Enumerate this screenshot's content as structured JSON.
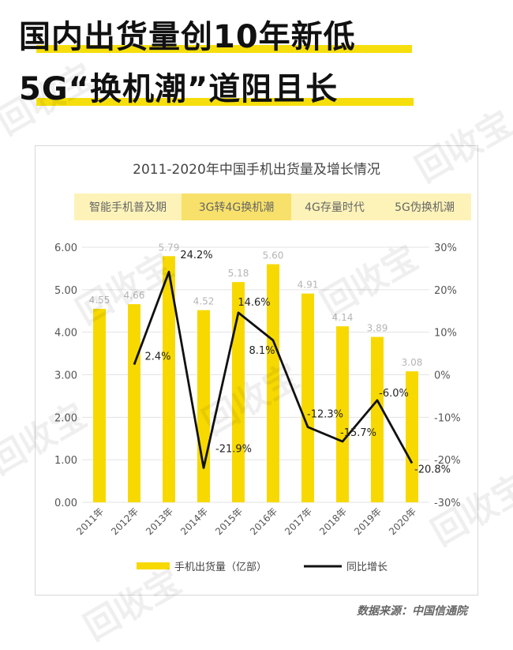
{
  "headline": {
    "line1": "国内出货量创10年新低",
    "line2": "5G“换机潮”道阻且长"
  },
  "watermark": "回收宝",
  "source": "数据来源：中国信通院",
  "colors": {
    "bar": "#f7d900",
    "line": "#111111",
    "highlight": "#f5de0c",
    "phase_light": "#fdf3b8",
    "phase_dark": "#f8e16a"
  },
  "chart_data": {
    "type": "bar",
    "title": "2011-2020年中国手机出货量及增长情况",
    "categories": [
      "2011年",
      "2012年",
      "2013年",
      "2014年",
      "2015年",
      "2016年",
      "2017年",
      "2018年",
      "2019年",
      "2020年"
    ],
    "phases": [
      {
        "label": "智能手机普及期",
        "shade": "light"
      },
      {
        "label": "3G转4G换机潮",
        "shade": "dark"
      },
      {
        "label": "4G存量时代",
        "shade": "light"
      },
      {
        "label": "5G伪换机潮",
        "shade": "light"
      }
    ],
    "series": [
      {
        "name": "手机出货量（亿部）",
        "type": "bar",
        "axis": "left",
        "values": [
          4.55,
          4.66,
          5.79,
          4.52,
          5.18,
          5.6,
          4.91,
          4.14,
          3.89,
          3.08
        ],
        "labels": [
          "4.55",
          "4.66",
          "5.79",
          "4.52",
          "5.18",
          "5.60",
          "4.91",
          "4.14",
          "3.89",
          "3.08"
        ]
      },
      {
        "name": "同比增长",
        "type": "line",
        "axis": "right",
        "values": [
          null,
          2.4,
          24.2,
          -21.9,
          14.6,
          8.1,
          -12.3,
          -15.7,
          -6.0,
          -20.8
        ],
        "labels": [
          null,
          "2.4%",
          "24.2%",
          "-21.9%",
          "14.6%",
          "8.1%",
          "-12.3%",
          "-15.7%",
          "-6.0%",
          "-20.8%"
        ]
      }
    ],
    "ylim_left": [
      0,
      6
    ],
    "yticks_left": [
      "0.00",
      "1.00",
      "2.00",
      "3.00",
      "4.00",
      "5.00",
      "6.00"
    ],
    "ylim_right": [
      -30,
      30
    ],
    "yticks_right": [
      "-30%",
      "-20%",
      "-10%",
      "0%",
      "10%",
      "20%",
      "30%"
    ],
    "grid": true,
    "legend_position": "bottom"
  }
}
